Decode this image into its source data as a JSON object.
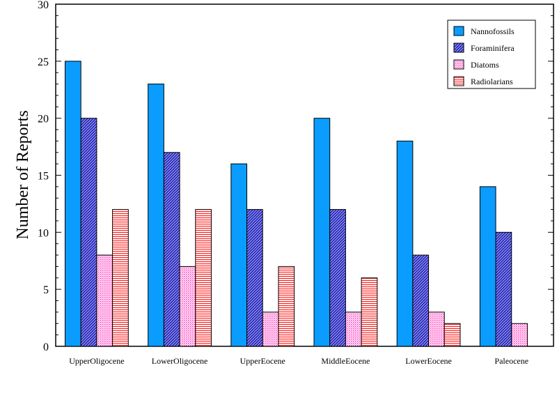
{
  "chart_data": {
    "type": "bar",
    "title": "",
    "xlabel": "",
    "ylabel": "Number of Reports",
    "ylim": [
      0,
      30
    ],
    "yticks": [
      0,
      5,
      10,
      15,
      20,
      25,
      30
    ],
    "categories": [
      "UpperOligocene",
      "LowerOligocene",
      "UpperEocene",
      "MiddleEocene",
      "LowerEocene",
      "Paleocene"
    ],
    "series": [
      {
        "name": "Nannofossils",
        "values": [
          25,
          23,
          16,
          20,
          18,
          14
        ],
        "color": "#0a9cff",
        "pattern": "solid"
      },
      {
        "name": "Foraminifera",
        "values": [
          20,
          17,
          12,
          12,
          8,
          10
        ],
        "color": "#3a3acc",
        "pattern": "diagonal-hatch"
      },
      {
        "name": "Diatoms",
        "values": [
          8,
          7,
          3,
          3,
          3,
          2
        ],
        "color": "#ff66cc",
        "pattern": "dots"
      },
      {
        "name": "Radiolarians",
        "values": [
          12,
          12,
          7,
          6,
          2,
          0
        ],
        "color": "#ff3333",
        "pattern": "horizontal-lines"
      }
    ],
    "legend_position": "top-right",
    "grid": false
  }
}
